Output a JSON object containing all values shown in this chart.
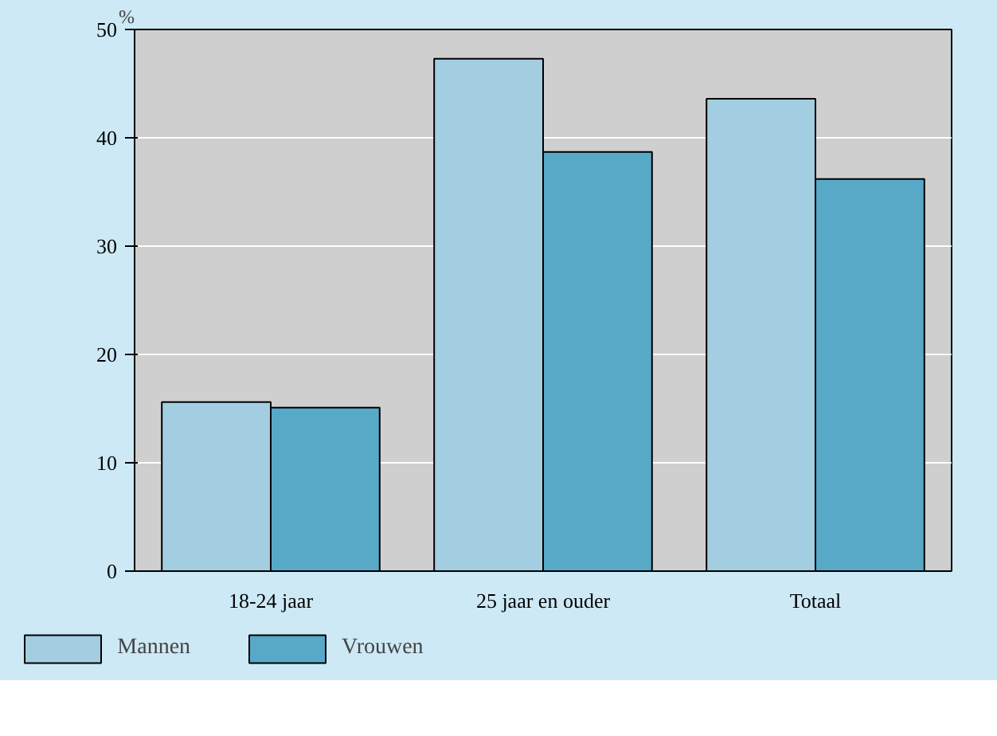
{
  "chart_data": {
    "type": "bar",
    "ylabel": "%",
    "categories": [
      "18-24 jaar",
      "25 jaar en ouder",
      "Totaal"
    ],
    "series": [
      {
        "name": "Mannen",
        "color": "#a3cde0",
        "values": [
          15.6,
          47.3,
          43.6
        ]
      },
      {
        "name": "Vrouwen",
        "color": "#58a8c8",
        "values": [
          15.1,
          38.7,
          36.2
        ]
      }
    ],
    "ylim": [
      0,
      50
    ],
    "yticks": [
      0,
      10,
      20,
      30,
      40,
      50
    ],
    "grid": "y",
    "legend": "bottom"
  }
}
